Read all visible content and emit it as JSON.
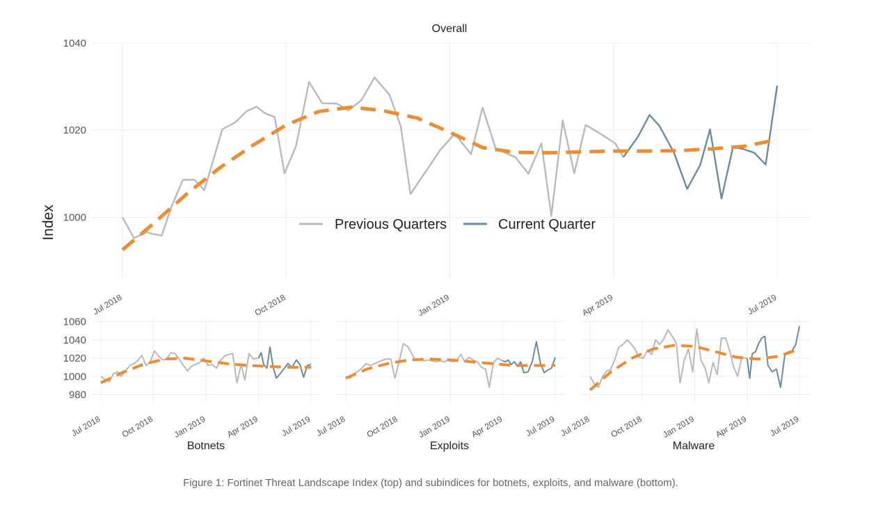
{
  "caption": "Figure 1: Fortinet Threat Landscape Index (top) and subindices for botnets, exploits, and malware (bottom).",
  "legend": {
    "previous": "Previous Quarters",
    "current": "Current Quarter"
  },
  "colors": {
    "previous": "#b9b9b9",
    "current": "#6a8aa3",
    "trend": "#ec8d33"
  },
  "chart_data": [
    {
      "type": "line",
      "title": "Overall",
      "ylabel": "Index",
      "ylim": [
        986,
        1040
      ],
      "yticks": [
        1000,
        1020,
        1040
      ],
      "xlim": [
        0,
        40
      ],
      "xticks": [
        {
          "x": 0,
          "label": "Jul 2018"
        },
        {
          "x": 10,
          "label": "Oct 2018"
        },
        {
          "x": 20,
          "label": "Jan 2019"
        },
        {
          "x": 30,
          "label": "Apr 2019"
        },
        {
          "x": 40,
          "label": "Jul 2019"
        }
      ],
      "series": [
        {
          "name": "Previous Quarters",
          "x": [
            0,
            0.7,
            1.5,
            1.8,
            2.4,
            3.0,
            3.7,
            4.4,
            5.0,
            5.4,
            6.1,
            6.9,
            7.6,
            8.2,
            8.7,
            9.3,
            9.9,
            10.6,
            11.4,
            12.2,
            13.1,
            13.8,
            14.6,
            15.4,
            16.3,
            17.0,
            17.6,
            18.2,
            18.8,
            19.4,
            20.3,
            21.3,
            22.0,
            22.8,
            23.5,
            24.0,
            24.8,
            25.6,
            26.2,
            26.9,
            27.6,
            28.3,
            29.2,
            30.1,
            30.6
          ],
          "values": [
            1000,
            995.2,
            996.6,
            996.2,
            995.8,
            1002.5,
            1008.6,
            1008.6,
            1006.2,
            1011.2,
            1020.2,
            1021.8,
            1024.4,
            1025.4,
            1023.9,
            1023.0,
            1010.1,
            1016.3,
            1031.1,
            1026.2,
            1026.1,
            1024.5,
            1026.9,
            1032.1,
            1028.2,
            1021.0,
            1005.3,
            1008.7,
            1012.0,
            1015.4,
            1019.2,
            1014.5,
            1025.2,
            1015.8,
            1014.6,
            1013.8,
            1010.0,
            1017.0,
            1000.3,
            1022.2,
            1010.1,
            1021.2,
            1019.2,
            1017.0,
            1013.8
          ]
        },
        {
          "name": "Current Quarter",
          "x": [
            30.6,
            31.5,
            32.2,
            32.8,
            33.7,
            34.5,
            35.3,
            35.9,
            36.6,
            37.3,
            37.9,
            38.6,
            39.3,
            40.0
          ],
          "values": [
            1013.8,
            1018.5,
            1023.5,
            1021.0,
            1014.8,
            1006.5,
            1012.0,
            1020.2,
            1004.3,
            1016.1,
            1015.7,
            1014.8,
            1012.1,
            1030.2
          ]
        },
        {
          "name": "",
          "x": [
            0,
            2,
            4,
            6,
            8,
            10,
            12,
            14,
            16,
            18,
            20,
            22,
            24,
            26,
            28,
            30,
            32,
            34,
            36,
            38,
            40
          ],
          "values": [
            992.5,
            998.9,
            1005.6,
            1011.5,
            1016.6,
            1021.2,
            1024.3,
            1025.3,
            1024.4,
            1022.8,
            1019.5,
            1016.0,
            1014.9,
            1014.8,
            1015.0,
            1015.2,
            1015.2,
            1015.3,
            1015.7,
            1016.3,
            1017.8
          ],
          "trend": true
        }
      ]
    },
    {
      "type": "line",
      "title": "Botnets",
      "ylim": [
        972,
        1062
      ],
      "yticks": [
        980,
        1000,
        1020,
        1040,
        1060
      ],
      "xlim": [
        0,
        40
      ],
      "xticks": [
        {
          "x": 0,
          "label": "Jul 2018"
        },
        {
          "x": 10,
          "label": "Oct 2018"
        },
        {
          "x": 20,
          "label": "Jan 2019"
        },
        {
          "x": 30,
          "label": "Apr 2019"
        },
        {
          "x": 40,
          "label": "Jul 2019"
        }
      ],
      "series": [
        {
          "name": "Previous Quarters",
          "x": [
            0,
            0.8,
            1.6,
            2.4,
            3.2,
            3.9,
            4.7,
            5.5,
            6.3,
            7.1,
            7.8,
            8.6,
            9.4,
            10.2,
            11.0,
            11.8,
            12.5,
            13.3,
            14.1,
            14.9,
            15.7,
            16.5,
            17.2,
            18.0,
            18.8,
            19.6,
            20.4,
            21.2,
            22.0,
            22.7,
            23.5,
            24.3,
            25.1,
            25.9,
            26.7,
            27.4,
            28.2,
            29.0,
            29.6,
            30.0
          ],
          "values": [
            1000,
            997,
            994,
            1003,
            1005,
            1000,
            1006,
            1012,
            1014,
            1018,
            1023,
            1012,
            1016,
            1028,
            1022,
            1018,
            1019,
            1026,
            1025,
            1019,
            1012,
            1006,
            1011,
            1013,
            1015,
            1020,
            1012,
            1013,
            1009,
            1017,
            1022,
            1024,
            1025,
            993,
            1013,
            996,
            1025,
            1019,
            1020,
            1020
          ]
        },
        {
          "name": "Current Quarter",
          "x": [
            30.0,
            30.5,
            31.0,
            31.6,
            32.2,
            32.8,
            33.4,
            34.0,
            34.8,
            35.6,
            36.4,
            37.2,
            37.9,
            38.6,
            39.3,
            40.0
          ],
          "values": [
            1020,
            1026,
            1013,
            1009,
            1032,
            1010,
            998,
            1002,
            1008,
            1014,
            1010,
            1018,
            1013,
            999,
            1012,
            1013
          ]
        },
        {
          "name": "",
          "x": [
            0,
            4,
            8,
            12,
            16,
            20,
            24,
            28,
            32,
            36,
            40
          ],
          "values": [
            993,
            1004,
            1013,
            1019,
            1020,
            1017,
            1014,
            1012,
            1011,
            1010,
            1010
          ],
          "trend": true
        }
      ]
    },
    {
      "type": "line",
      "title": "Exploits",
      "ylim": [
        972,
        1062
      ],
      "yticks": [
        980,
        1000,
        1020,
        1040,
        1060
      ],
      "xlim": [
        0,
        40
      ],
      "xticks": [
        {
          "x": 0,
          "label": "Jul 2018"
        },
        {
          "x": 10,
          "label": "Oct 2018"
        },
        {
          "x": 20,
          "label": "Jan 2019"
        },
        {
          "x": 30,
          "label": "Apr 2019"
        },
        {
          "x": 40,
          "label": "Jul 2019"
        }
      ],
      "series": [
        {
          "name": "Previous Quarters",
          "x": [
            0,
            0.8,
            1.6,
            2.4,
            3.2,
            3.9,
            4.7,
            5.5,
            6.3,
            7.1,
            7.8,
            8.6,
            9.4,
            10.2,
            11.0,
            11.8,
            12.5,
            13.3,
            14.1,
            14.9,
            15.7,
            16.5,
            17.2,
            18.0,
            18.8,
            19.6,
            20.4,
            21.2,
            22.0,
            22.7,
            23.5,
            24.3,
            25.1,
            25.9,
            26.7,
            27.4,
            28.2,
            29.0,
            29.6,
            30.0
          ],
          "values": [
            1000,
            998,
            1003,
            1006,
            1010,
            1014,
            1012,
            1014,
            1016,
            1018,
            1019,
            1019,
            998,
            1017,
            1036,
            1033,
            1026,
            1018,
            1019,
            1017,
            1018,
            1017,
            1016,
            1017,
            1016,
            1018,
            1016,
            1018,
            1024,
            1016,
            1021,
            1018,
            1016,
            1010,
            1008,
            988,
            1015,
            1020,
            1018,
            1017
          ]
        },
        {
          "name": "Current Quarter",
          "x": [
            30.0,
            30.5,
            31.0,
            31.6,
            32.2,
            32.8,
            33.4,
            34.0,
            34.8,
            35.6,
            36.4,
            37.2,
            37.9,
            38.6,
            39.3,
            40.0
          ],
          "values": [
            1017,
            1016,
            1018,
            1013,
            1016,
            1011,
            1016,
            1004,
            1005,
            1016,
            1038,
            1014,
            1004,
            1007,
            1009,
            1021
          ]
        },
        {
          "name": "",
          "x": [
            0,
            4,
            8,
            12,
            16,
            20,
            24,
            28,
            32,
            36,
            40
          ],
          "values": [
            998,
            1008,
            1014,
            1018,
            1019,
            1018,
            1016,
            1014,
            1012,
            1012,
            1012
          ],
          "trend": true
        }
      ]
    },
    {
      "type": "line",
      "title": "Malware",
      "ylim": [
        972,
        1062
      ],
      "yticks": [
        980,
        1000,
        1020,
        1040,
        1060
      ],
      "xlim": [
        0,
        40
      ],
      "xticks": [
        {
          "x": 0,
          "label": "Jul 2018"
        },
        {
          "x": 10,
          "label": "Oct 2018"
        },
        {
          "x": 20,
          "label": "Jan 2019"
        },
        {
          "x": 30,
          "label": "Apr 2019"
        },
        {
          "x": 40,
          "label": "Jul 2019"
        }
      ],
      "series": [
        {
          "name": "Previous Quarters",
          "x": [
            0,
            0.8,
            1.6,
            2.4,
            3.2,
            3.9,
            4.7,
            5.5,
            6.3,
            7.1,
            7.8,
            8.6,
            9.4,
            10.2,
            11.0,
            11.8,
            12.5,
            13.3,
            14.1,
            14.9,
            15.7,
            16.5,
            17.2,
            18.0,
            18.8,
            19.6,
            20.4,
            21.2,
            22.0,
            22.7,
            23.5,
            24.3,
            25.1,
            25.9,
            26.7,
            27.4,
            28.2,
            29.0,
            29.6,
            30.0
          ],
          "values": [
            1000,
            992,
            988,
            1000,
            1006,
            1007,
            1018,
            1032,
            1035,
            1040,
            1036,
            1030,
            1021,
            1020,
            1029,
            1024,
            1040,
            1035,
            1041,
            1051,
            1044,
            1036,
            993,
            1018,
            1030,
            1005,
            1052,
            1018,
            1009,
            993,
            1015,
            1002,
            1042,
            1042,
            1028,
            1011,
            1000,
            1021,
            1020,
            1020
          ]
        },
        {
          "name": "Current Quarter",
          "x": [
            30.0,
            30.5,
            31.0,
            31.6,
            32.2,
            32.8,
            33.4,
            34.0,
            34.8,
            35.6,
            36.4,
            37.2,
            37.9,
            38.6,
            39.3,
            40.0
          ],
          "values": [
            1020,
            998,
            1025,
            1027,
            1036,
            1042,
            1044,
            1012,
            1005,
            1008,
            988,
            1023,
            1027,
            1028,
            1035,
            1055
          ]
        },
        {
          "name": "",
          "x": [
            0,
            4,
            8,
            12,
            16,
            20,
            24,
            28,
            32,
            36,
            40
          ],
          "values": [
            985,
            1005,
            1020,
            1030,
            1034,
            1033,
            1027,
            1021,
            1019,
            1022,
            1030
          ],
          "trend": true
        }
      ]
    }
  ]
}
